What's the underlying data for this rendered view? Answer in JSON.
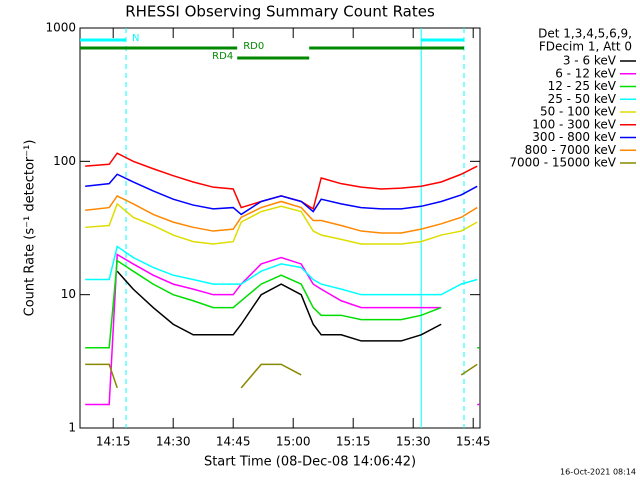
{
  "chart_data": {
    "type": "line",
    "title": "RHESSI Observing Summary Count Rates",
    "xlabel": "Start Time (08-Dec-08 14:06:42)",
    "ylabel": "Count Rate (s⁻¹ detector⁻¹)",
    "footer": "16-Oct-2021 08:14",
    "legend_header": [
      "Det 1,3,4,5,6,9,",
      "FDecim 1, Att 0"
    ],
    "log_y": true,
    "ylim": [
      1,
      1000
    ],
    "yticks": [
      1,
      10,
      100,
      1000
    ],
    "xlim": [
      "14:06:42",
      "15:46:42"
    ],
    "xticks": [
      "14:15",
      "14:30",
      "14:45",
      "15:00",
      "15:15",
      "15:30",
      "15:45"
    ],
    "x": [
      "14:08",
      "14:14",
      "14:16",
      "14:20",
      "14:25",
      "14:30",
      "14:35",
      "14:40",
      "14:45",
      "14:47",
      "14:52",
      "14:57",
      "15:02",
      "15:05",
      "15:07",
      "15:12",
      "15:17",
      "15:22",
      "15:27",
      "15:32",
      "15:37",
      "15:42",
      "15:46"
    ],
    "series": [
      {
        "name": "3 - 6 keV",
        "color": "#000000",
        "values": [
          null,
          null,
          15,
          11,
          8,
          6,
          5,
          5,
          5,
          6,
          10,
          12,
          10,
          6,
          5,
          5,
          4.5,
          4.5,
          4.5,
          5,
          6,
          null,
          null
        ]
      },
      {
        "name": "6 - 12 keV",
        "color": "#ff00ff",
        "values": [
          1.5,
          1.5,
          20,
          17,
          14,
          12,
          11,
          10,
          10,
          12,
          17,
          19,
          17,
          12,
          11,
          9,
          8,
          8,
          8,
          8,
          8,
          null,
          1.5
        ]
      },
      {
        "name": "12 - 25 keV",
        "color": "#00dd00",
        "values": [
          4,
          4,
          18,
          15,
          12,
          10,
          9,
          8,
          8,
          9,
          12,
          14,
          12,
          8,
          7,
          7,
          6.5,
          6.5,
          6.5,
          7,
          8,
          null,
          4
        ]
      },
      {
        "name": "25 - 50 keV",
        "color": "#00ffff",
        "values": [
          13,
          13,
          23,
          19,
          16,
          14,
          13,
          12,
          12,
          12,
          15,
          17,
          16,
          13,
          12,
          11,
          10,
          10,
          10,
          10,
          10,
          12,
          13
        ]
      },
      {
        "name": "50 - 100 keV",
        "color": "#dddd00",
        "values": [
          32,
          33,
          48,
          38,
          33,
          28,
          25,
          24,
          25,
          35,
          42,
          46,
          42,
          30,
          28,
          26,
          24,
          24,
          24,
          25,
          28,
          30,
          35
        ]
      },
      {
        "name": "100 - 300 keV",
        "color": "#ff0000",
        "values": [
          92,
          95,
          115,
          100,
          88,
          78,
          70,
          64,
          62,
          45,
          50,
          55,
          50,
          44,
          75,
          68,
          64,
          62,
          63,
          65,
          70,
          80,
          92
        ]
      },
      {
        "name": "300 - 800 keV",
        "color": "#0000ff",
        "values": [
          65,
          68,
          80,
          70,
          60,
          52,
          47,
          44,
          45,
          40,
          50,
          55,
          50,
          42,
          52,
          48,
          45,
          44,
          44,
          46,
          50,
          56,
          65
        ]
      },
      {
        "name": "800 - 7000 keV",
        "color": "#ff8800",
        "values": [
          43,
          45,
          55,
          48,
          40,
          35,
          32,
          30,
          31,
          38,
          45,
          50,
          45,
          36,
          36,
          33,
          30,
          29,
          29,
          31,
          34,
          38,
          45
        ]
      },
      {
        "name": "7000 - 15000 keV",
        "color": "#888800",
        "values": [
          3,
          3,
          2,
          null,
          null,
          null,
          null,
          null,
          null,
          2,
          3,
          3,
          2.5,
          null,
          null,
          null,
          null,
          null,
          null,
          null,
          null,
          2.5,
          3
        ]
      }
    ],
    "vlines": [
      {
        "time": "14:18:12",
        "color": "#00ffff",
        "dashed": true
      },
      {
        "time": "15:32:00",
        "color": "#00ffff",
        "dashed": false
      },
      {
        "time": "15:42:42",
        "color": "#00ffff",
        "dashed": true
      }
    ],
    "flag_bars": [
      {
        "label": "N",
        "start": "14:06:42",
        "end": "14:18:12",
        "level": 1,
        "color": "#00ffff"
      },
      {
        "label": null,
        "start": "15:32:00",
        "end": "15:42:42",
        "level": 1,
        "color": "#00ffff"
      },
      {
        "label": "RD0",
        "start": "14:06:42",
        "end": "14:46:00",
        "level": 2,
        "color": "#008800"
      },
      {
        "label": "RD4",
        "start": "14:46:00",
        "end": "15:04:00",
        "level": 3,
        "color": "#008800"
      },
      {
        "label": null,
        "start": "15:04:00",
        "end": "15:42:42",
        "level": 2,
        "color": "#008800"
      }
    ]
  }
}
